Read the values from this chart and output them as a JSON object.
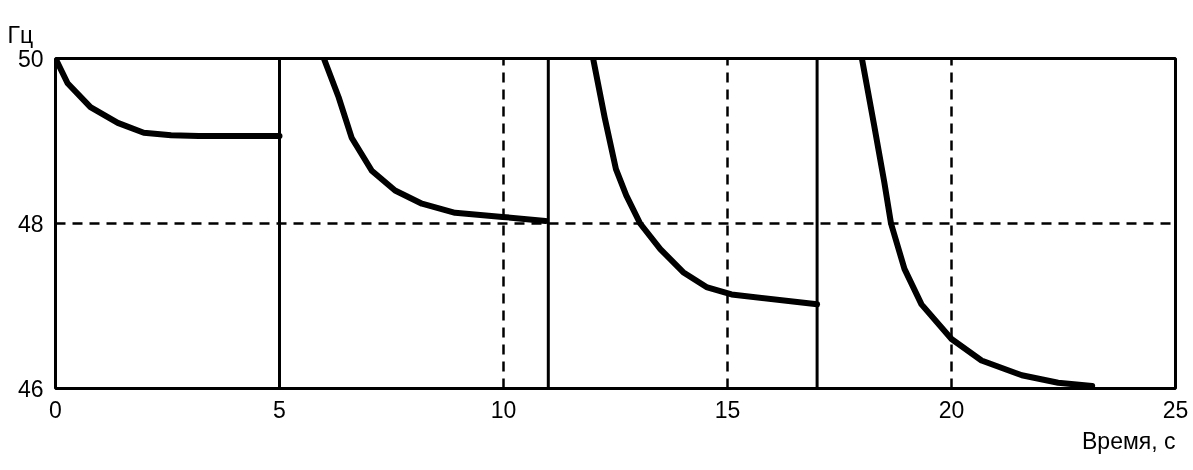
{
  "chart_data": {
    "type": "line",
    "xlabel": "Время, с",
    "ylabel": "Гц",
    "xlim": [
      0,
      25
    ],
    "ylim": [
      46,
      50
    ],
    "xticks": [
      0,
      5,
      10,
      15,
      20,
      25
    ],
    "yticks": [
      46,
      48,
      50
    ],
    "grid": true,
    "series": [
      {
        "color": "#000000",
        "x": [
          0,
          0.27,
          0.78,
          1.39,
          1.97,
          2.58,
          3.2,
          5
        ],
        "values": [
          50,
          49.7,
          49.41,
          49.22,
          49.1,
          49.07,
          49.06,
          49.06
        ]
      },
      {
        "color": "#000000",
        "x": [
          5.99,
          6.32,
          6.61,
          7.06,
          7.58,
          8.18,
          8.92,
          9.98,
          10.94
        ],
        "values": [
          50,
          49.53,
          49.04,
          48.64,
          48.4,
          48.24,
          48.13,
          48.08,
          48.03
        ]
      },
      {
        "color": "#000000",
        "x": [
          12.0,
          12.26,
          12.51,
          12.74,
          13.05,
          13.5,
          14.01,
          14.53,
          15.09,
          17.0
        ],
        "values": [
          50,
          49.28,
          48.66,
          48.34,
          48.0,
          47.69,
          47.41,
          47.23,
          47.14,
          47.02
        ]
      },
      {
        "color": "#000000",
        "x": [
          18.0,
          18.27,
          18.5,
          18.65,
          18.95,
          19.33,
          20.0,
          20.67,
          21.57,
          22.38,
          23.14
        ],
        "values": [
          50,
          49.2,
          48.5,
          48.0,
          47.45,
          47.02,
          46.6,
          46.34,
          46.16,
          46.07,
          46.03
        ]
      }
    ],
    "ref_lines": [
      {
        "axis": "x",
        "value": 5,
        "color": "#000000"
      },
      {
        "axis": "x",
        "value": 11,
        "color": "#000000"
      },
      {
        "axis": "x",
        "value": 17,
        "color": "#000000"
      }
    ]
  }
}
